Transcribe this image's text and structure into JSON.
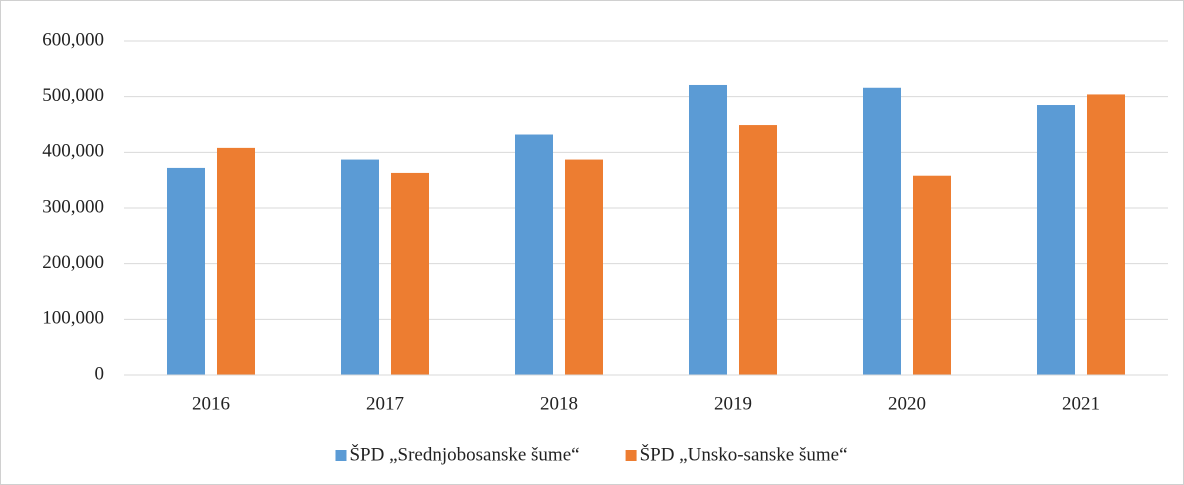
{
  "chart_data": {
    "type": "bar",
    "categories": [
      "2016",
      "2017",
      "2018",
      "2019",
      "2020",
      "2021"
    ],
    "series": [
      {
        "name": "ŠPD „Srednjobosanske šume“",
        "color": "#5b9bd5",
        "values": [
          372000,
          387000,
          432000,
          521000,
          516000,
          485000
        ]
      },
      {
        "name": "ŠPD „Unsko-sanske šume“",
        "color": "#ed7d31",
        "values": [
          408000,
          363000,
          387000,
          449000,
          358000,
          504000
        ]
      }
    ],
    "ylim": [
      0,
      600000
    ],
    "yticks": [
      0,
      {
        "value": 100000,
        "label": "100,000"
      },
      {
        "value": 200000,
        "label": "200,000"
      },
      {
        "value": 300000,
        "label": "300,000"
      },
      {
        "value": 400000,
        "label": "400,000"
      },
      {
        "value": 500000,
        "label": "500,000"
      },
      {
        "value": 600000,
        "label": "600,000"
      }
    ],
    "grid": true,
    "legend": "bottom"
  }
}
